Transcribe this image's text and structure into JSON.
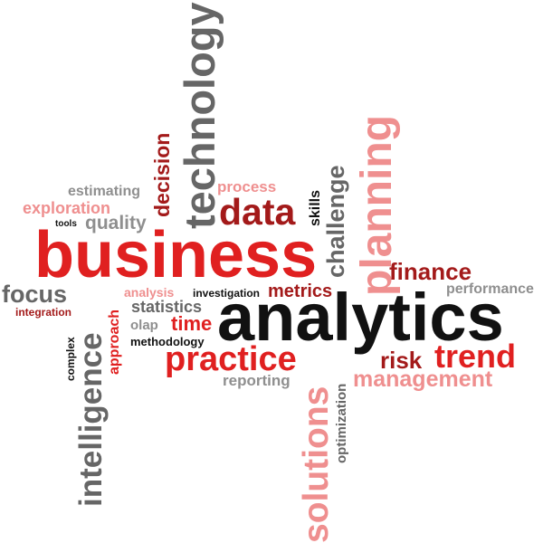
{
  "colors": {
    "red": "#e02020",
    "dark_red": "#a31a1a",
    "pink": "#ef8f8f",
    "gray": "#666666",
    "light_gray": "#8f8f8f",
    "black": "#111111"
  },
  "words": {
    "technology": "technology",
    "decision": "decision",
    "planning": "planning",
    "challenge": "challenge",
    "skills": "skills",
    "process": "process",
    "data": "data",
    "estimating": "estimating",
    "exploration": "exploration",
    "tools": "tools",
    "quality": "quality",
    "business": "business",
    "finance": "finance",
    "performance": "performance",
    "focus": "focus",
    "integration": "integration",
    "analysis": "analysis",
    "investigation": "investigation",
    "metrics": "metrics",
    "statistics": "statistics",
    "olap": "olap",
    "time": "time",
    "methodology": "methodology",
    "analytics": "analytics",
    "practice": "practice",
    "reporting": "reporting",
    "risk": "risk",
    "trend": "trend",
    "management": "management",
    "intelligence": "intelligence",
    "complex": "complex",
    "approach": "approach",
    "solutions": "solutions",
    "optimization": "optimization"
  }
}
